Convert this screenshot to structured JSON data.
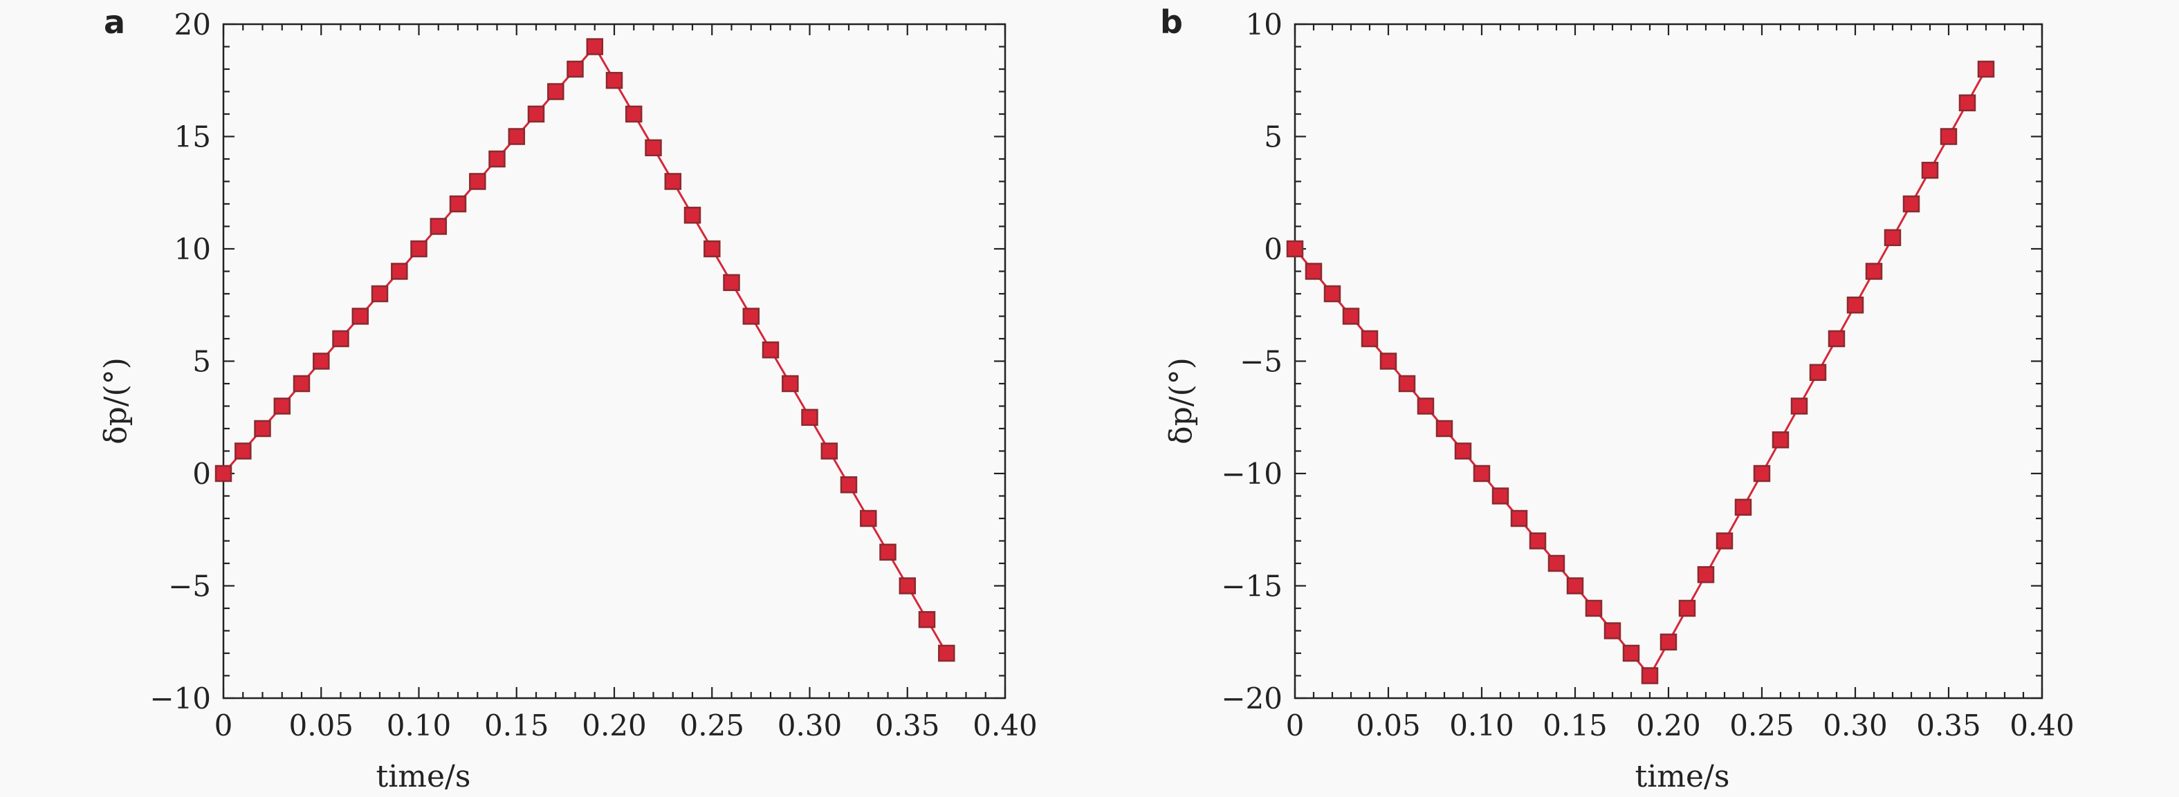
{
  "chart_data": [
    {
      "type": "line",
      "panel_label": "a",
      "xlabel": "time/s",
      "ylabel": "δp/(°)",
      "xlim": [
        0,
        0.4
      ],
      "ylim": [
        -10,
        20
      ],
      "xticks": [
        "0",
        "0.05",
        "0.10",
        "0.15",
        "0.20",
        "0.25",
        "0.30",
        "0.35",
        "0.40"
      ],
      "yticks": [
        "−10",
        "−5",
        "0",
        "5",
        "10",
        "15",
        "20"
      ],
      "grid": false,
      "series": [
        {
          "color": "#d62739",
          "marker": "square",
          "x": [
            0,
            0.01,
            0.02,
            0.03,
            0.04,
            0.05,
            0.06,
            0.07,
            0.08,
            0.09,
            0.1,
            0.11,
            0.12,
            0.13,
            0.14,
            0.15,
            0.16,
            0.17,
            0.18,
            0.19,
            0.2,
            0.21,
            0.22,
            0.23,
            0.24,
            0.25,
            0.26,
            0.27,
            0.28,
            0.29,
            0.3,
            0.31,
            0.32,
            0.33,
            0.34,
            0.35,
            0.36,
            0.37
          ],
          "y": [
            0,
            1,
            2,
            3,
            4,
            5,
            6,
            7,
            8,
            9,
            10,
            11,
            12,
            13,
            14,
            15,
            16,
            17,
            18,
            19,
            17.5,
            16,
            14.5,
            13,
            11.5,
            10,
            8.5,
            7,
            5.5,
            4,
            2.5,
            1,
            -0.5,
            -2,
            -3.5,
            -5,
            -6.5,
            -8
          ]
        }
      ]
    },
    {
      "type": "line",
      "panel_label": "b",
      "xlabel": "time/s",
      "ylabel": "δp/(°)",
      "xlim": [
        0,
        0.4
      ],
      "ylim": [
        -20,
        10
      ],
      "xticks": [
        "0",
        "0.05",
        "0.10",
        "0.15",
        "0.20",
        "0.25",
        "0.30",
        "0.35",
        "0.40"
      ],
      "yticks": [
        "−20",
        "−15",
        "−10",
        "−5",
        "0",
        "5",
        "10"
      ],
      "grid": false,
      "series": [
        {
          "color": "#d62739",
          "marker": "square",
          "x": [
            0,
            0.01,
            0.02,
            0.03,
            0.04,
            0.05,
            0.06,
            0.07,
            0.08,
            0.09,
            0.1,
            0.11,
            0.12,
            0.13,
            0.14,
            0.15,
            0.16,
            0.17,
            0.18,
            0.19,
            0.2,
            0.21,
            0.22,
            0.23,
            0.24,
            0.25,
            0.26,
            0.27,
            0.28,
            0.29,
            0.3,
            0.31,
            0.32,
            0.33,
            0.34,
            0.35,
            0.36,
            0.37
          ],
          "y": [
            0,
            -1,
            -2,
            -3,
            -4,
            -5,
            -6,
            -7,
            -8,
            -9,
            -10,
            -11,
            -12,
            -13,
            -14,
            -15,
            -16,
            -17,
            -18,
            -19,
            -17.5,
            -16,
            -14.5,
            -13,
            -11.5,
            -10,
            -8.5,
            -7,
            -5.5,
            -4,
            -2.5,
            -1,
            0.5,
            2,
            3.5,
            5,
            6.5,
            8
          ]
        }
      ]
    }
  ]
}
